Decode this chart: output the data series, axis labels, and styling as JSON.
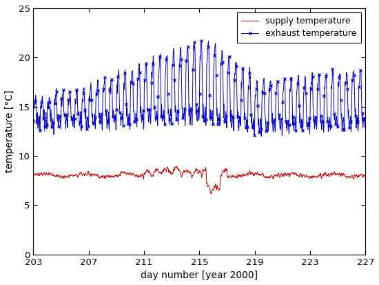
{
  "xlabel": "day number [year 2000]",
  "ylabel": "temperature [°C]",
  "xlim": [
    203,
    227
  ],
  "ylim": [
    0,
    25
  ],
  "xticks": [
    203,
    207,
    211,
    215,
    219,
    223,
    227
  ],
  "yticks": [
    0,
    5,
    10,
    15,
    20,
    25
  ],
  "supply_color": "#cc0000",
  "exhaust_color": "#0000cc",
  "supply_label": "supply temperature",
  "exhaust_label": "exhaust temperature",
  "n_points": 1200,
  "day_start": 203,
  "day_end": 227,
  "figsize": [
    5.5,
    4.13
  ],
  "dpi": 100,
  "legend_loc": "upper right",
  "marker": "x",
  "markersize": 3.5,
  "linewidth_supply": 0.7,
  "linewidth_exhaust": 0.7,
  "marker_every": 6
}
